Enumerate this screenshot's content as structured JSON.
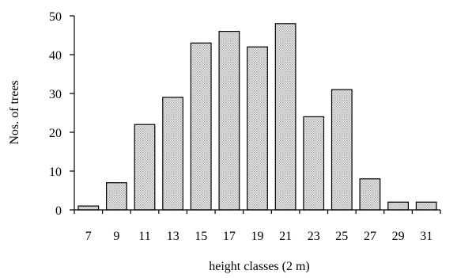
{
  "chart_data": {
    "type": "bar",
    "title": "",
    "xlabel": "height classes (2 m)",
    "ylabel": "Nos. of trees",
    "categories": [
      "7",
      "9",
      "11",
      "13",
      "15",
      "17",
      "19",
      "21",
      "23",
      "25",
      "27",
      "29",
      "31"
    ],
    "values": [
      1,
      7,
      22,
      29,
      43,
      46,
      42,
      48,
      24,
      31,
      8,
      2,
      2
    ],
    "ylim": [
      0,
      50
    ],
    "yticks": [
      0,
      10,
      20,
      30,
      40,
      50
    ],
    "grid": false,
    "legend": "none",
    "bar_color": "#d6d6d6"
  }
}
